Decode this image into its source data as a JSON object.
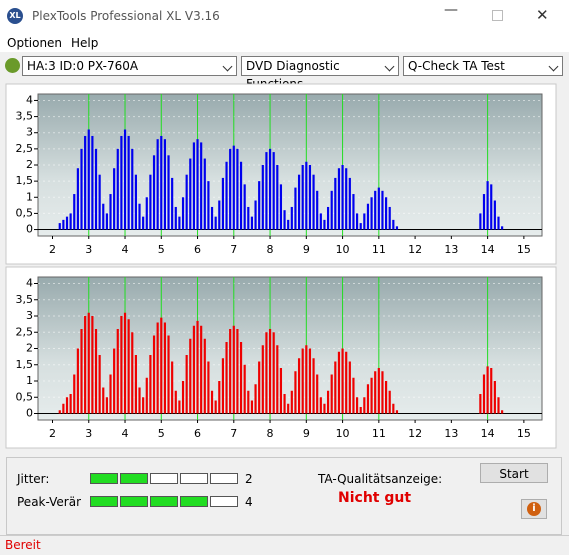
{
  "window": {
    "title": "PlexTools Professional XL V3.16"
  },
  "menu": [
    "Optionen",
    "Help"
  ],
  "toolbar": {
    "drive": "HA:3 ID:0  PX-760A",
    "function": "DVD Diagnostic Functions",
    "test": "Q-Check TA Test"
  },
  "chart_data": [
    {
      "type": "bar",
      "color": "#0000ee",
      "x": [
        2.2,
        2.3,
        2.4,
        2.5,
        2.6,
        2.7,
        2.8,
        2.9,
        3.0,
        3.1,
        3.2,
        3.3,
        3.4,
        3.5,
        3.6,
        3.7,
        3.8,
        3.9,
        4.0,
        4.1,
        4.2,
        4.3,
        4.4,
        4.5,
        4.6,
        4.7,
        4.8,
        4.9,
        5.0,
        5.1,
        5.2,
        5.3,
        5.4,
        5.5,
        5.6,
        5.7,
        5.8,
        5.9,
        6.0,
        6.1,
        6.2,
        6.3,
        6.4,
        6.5,
        6.6,
        6.7,
        6.8,
        6.9,
        7.0,
        7.1,
        7.2,
        7.3,
        7.4,
        7.5,
        7.6,
        7.7,
        7.8,
        7.9,
        8.0,
        8.1,
        8.2,
        8.3,
        8.4,
        8.5,
        8.6,
        8.7,
        8.8,
        8.9,
        9.0,
        9.1,
        9.2,
        9.3,
        9.4,
        9.5,
        9.6,
        9.7,
        9.8,
        9.9,
        10.0,
        10.1,
        10.2,
        10.3,
        10.4,
        10.5,
        10.6,
        10.7,
        10.8,
        10.9,
        11.0,
        11.1,
        11.2,
        11.3,
        11.4,
        11.5,
        13.8,
        13.9,
        14.0,
        14.1,
        14.2,
        14.3,
        14.4
      ],
      "values": [
        0.2,
        0.3,
        0.4,
        0.5,
        1.1,
        1.9,
        2.5,
        2.9,
        3.1,
        2.9,
        2.5,
        1.7,
        0.8,
        0.5,
        1.1,
        1.9,
        2.5,
        2.9,
        3.1,
        2.9,
        2.5,
        1.7,
        0.8,
        0.4,
        1.0,
        1.7,
        2.3,
        2.8,
        2.9,
        2.8,
        2.3,
        1.6,
        0.7,
        0.4,
        1.0,
        1.7,
        2.2,
        2.7,
        2.8,
        2.7,
        2.2,
        1.5,
        0.7,
        0.4,
        0.9,
        1.6,
        2.1,
        2.5,
        2.6,
        2.5,
        2.1,
        1.4,
        0.7,
        0.4,
        0.9,
        1.5,
        2.0,
        2.4,
        2.5,
        2.4,
        2.0,
        1.4,
        0.6,
        0.3,
        0.7,
        1.3,
        1.7,
        2.0,
        2.1,
        2.0,
        1.7,
        1.2,
        0.5,
        0.3,
        0.7,
        1.2,
        1.6,
        1.9,
        2.0,
        1.9,
        1.6,
        1.1,
        0.5,
        0.2,
        0.5,
        0.8,
        1.0,
        1.2,
        1.3,
        1.2,
        1.0,
        0.7,
        0.3,
        0.1,
        0.5,
        1.1,
        1.5,
        1.4,
        0.9,
        0.4,
        0.1
      ],
      "xlim": [
        1.6,
        15.5
      ],
      "ylim": [
        -0.2,
        4.2
      ],
      "xticks": [
        2,
        3,
        4,
        5,
        6,
        7,
        8,
        9,
        10,
        11,
        12,
        13,
        14,
        15
      ],
      "yticks": [
        0,
        {
          "value": 0.5,
          "label": "0,5"
        },
        1,
        {
          "value": 1.5,
          "label": "1,5"
        },
        2,
        {
          "value": 2.5,
          "label": "2,5"
        },
        3,
        {
          "value": 3.5,
          "label": "3,5"
        },
        4
      ],
      "reference_lines": [
        3,
        4,
        5,
        6,
        7,
        8,
        9,
        10,
        11,
        14
      ],
      "grid": true
    },
    {
      "type": "bar",
      "color": "#ee0000",
      "x": [
        2.2,
        2.3,
        2.4,
        2.5,
        2.6,
        2.7,
        2.8,
        2.9,
        3.0,
        3.1,
        3.2,
        3.3,
        3.4,
        3.5,
        3.6,
        3.7,
        3.8,
        3.9,
        4.0,
        4.1,
        4.2,
        4.3,
        4.4,
        4.5,
        4.6,
        4.7,
        4.8,
        4.9,
        5.0,
        5.1,
        5.2,
        5.3,
        5.4,
        5.5,
        5.6,
        5.7,
        5.8,
        5.9,
        6.0,
        6.1,
        6.2,
        6.3,
        6.4,
        6.5,
        6.6,
        6.7,
        6.8,
        6.9,
        7.0,
        7.1,
        7.2,
        7.3,
        7.4,
        7.5,
        7.6,
        7.7,
        7.8,
        7.9,
        8.0,
        8.1,
        8.2,
        8.3,
        8.4,
        8.5,
        8.6,
        8.7,
        8.8,
        8.9,
        9.0,
        9.1,
        9.2,
        9.3,
        9.4,
        9.5,
        9.6,
        9.7,
        9.8,
        9.9,
        10.0,
        10.1,
        10.2,
        10.3,
        10.4,
        10.5,
        10.6,
        10.7,
        10.8,
        10.9,
        11.0,
        11.1,
        11.2,
        11.3,
        11.4,
        11.5,
        13.8,
        13.9,
        14.0,
        14.1,
        14.2,
        14.3,
        14.4
      ],
      "values": [
        0.1,
        0.3,
        0.5,
        0.6,
        1.2,
        2.0,
        2.6,
        3.0,
        3.1,
        3.0,
        2.6,
        1.8,
        0.8,
        0.5,
        1.2,
        2.0,
        2.6,
        3.0,
        3.1,
        2.9,
        2.5,
        1.8,
        0.8,
        0.5,
        1.1,
        1.8,
        2.4,
        2.8,
        2.95,
        2.8,
        2.4,
        1.6,
        0.7,
        0.4,
        1.0,
        1.8,
        2.3,
        2.7,
        2.85,
        2.7,
        2.3,
        1.6,
        0.7,
        0.4,
        1.0,
        1.7,
        2.2,
        2.6,
        2.7,
        2.6,
        2.2,
        1.5,
        0.7,
        0.4,
        0.9,
        1.6,
        2.1,
        2.5,
        2.6,
        2.5,
        2.1,
        1.4,
        0.6,
        0.3,
        0.7,
        1.3,
        1.7,
        2.0,
        2.1,
        2.0,
        1.7,
        1.2,
        0.5,
        0.3,
        0.7,
        1.2,
        1.6,
        1.9,
        2.0,
        1.9,
        1.6,
        1.1,
        0.5,
        0.2,
        0.5,
        0.9,
        1.1,
        1.3,
        1.4,
        1.3,
        1.0,
        0.7,
        0.3,
        0.1,
        0.6,
        1.2,
        1.45,
        1.4,
        1.0,
        0.5,
        0.1
      ],
      "xlim": [
        1.6,
        15.5
      ],
      "ylim": [
        -0.2,
        4.2
      ],
      "xticks": [
        2,
        3,
        4,
        5,
        6,
        7,
        8,
        9,
        10,
        11,
        12,
        13,
        14,
        15
      ],
      "yticks": [
        0,
        {
          "value": 0.5,
          "label": "0,5"
        },
        1,
        {
          "value": 1.5,
          "label": "1,5"
        },
        2,
        {
          "value": 2.5,
          "label": "2,5"
        },
        3,
        {
          "value": 3.5,
          "label": "3,5"
        },
        4
      ],
      "reference_lines": [
        3,
        4,
        5,
        6,
        7,
        8,
        9,
        10,
        11,
        14
      ],
      "grid": true
    }
  ],
  "rating": {
    "rows": [
      {
        "label": "Jitter:",
        "value": 2,
        "max": 5
      },
      {
        "label": "Peak-Veränd",
        "value": 4,
        "max": 5
      }
    ]
  },
  "quality": {
    "label": "TA-Qualitätsanzeige:",
    "result": "Nicht gut"
  },
  "buttons": {
    "start": "Start"
  },
  "status": "Bereit"
}
